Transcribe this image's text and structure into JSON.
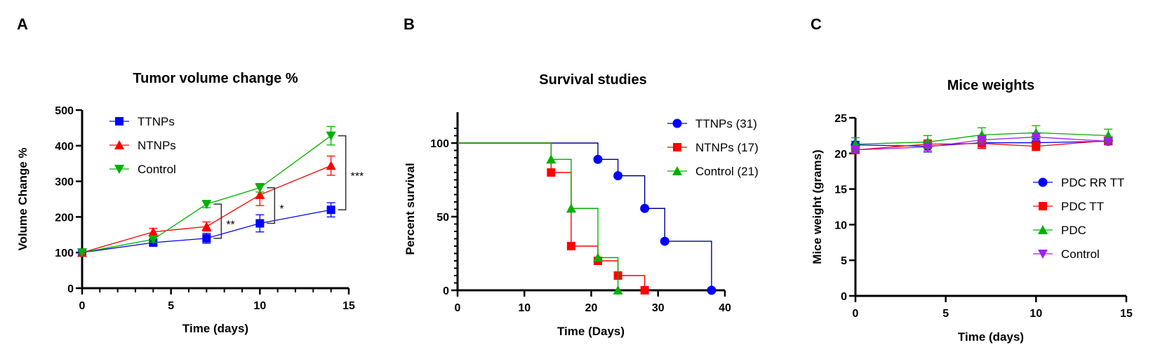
{
  "figure": {
    "panels": [
      "A",
      "B",
      "C"
    ]
  },
  "chart_data": [
    {
      "panel": "A",
      "type": "line",
      "title": "Tumor volume change %",
      "xlabel": "Time (days)",
      "ylabel": "Volume Change %",
      "xlim": [
        0,
        15
      ],
      "ylim": [
        0,
        500
      ],
      "xticks": [
        0,
        5,
        10,
        15
      ],
      "xminor_step": 1,
      "yticks": [
        0,
        100,
        200,
        300,
        400,
        500
      ],
      "grid": false,
      "legend_position": "top-left",
      "x": [
        0,
        4,
        7,
        10,
        14
      ],
      "series": [
        {
          "name": "TTNPs",
          "color": "#0000ff",
          "marker": "square",
          "values": [
            100,
            128,
            140,
            182,
            220
          ],
          "error": [
            3,
            8,
            14,
            24,
            20
          ]
        },
        {
          "name": "NTNPs",
          "color": "#ff0000",
          "marker": "triangle-up",
          "values": [
            100,
            158,
            173,
            262,
            344
          ],
          "error": [
            3,
            10,
            13,
            30,
            27
          ]
        },
        {
          "name": "Control",
          "color": "#00b000",
          "marker": "triangle-down",
          "values": [
            100,
            137,
            236,
            282,
            428
          ],
          "error": [
            3,
            8,
            10,
            12,
            26
          ]
        }
      ],
      "annotations": [
        {
          "label": "**",
          "x": 7,
          "from": 140,
          "to": 236
        },
        {
          "label": "*",
          "x": 10,
          "from": 182,
          "to": 282
        },
        {
          "label": "***",
          "x": 14,
          "from": 220,
          "to": 428
        }
      ]
    },
    {
      "panel": "B",
      "type": "line",
      "subtype": "kaplan-meier",
      "title": "Survival studies",
      "xlabel": "Time (Days)",
      "ylabel": "Percent survival",
      "xlim": [
        0,
        40
      ],
      "ylim": [
        0,
        110
      ],
      "xticks": [
        0,
        10,
        20,
        30,
        40
      ],
      "yticks": [
        0,
        50,
        100
      ],
      "yminor_step": 5,
      "grid": false,
      "legend_position": "top-right",
      "series": [
        {
          "name": "TTNPs (31)",
          "color": "#0000ff",
          "line_color": "#00008b",
          "marker": "circle",
          "steps": [
            [
              0,
              100
            ],
            [
              21,
              88.9
            ],
            [
              24,
              77.8
            ],
            [
              28,
              55.6
            ],
            [
              31,
              33.3
            ],
            [
              38,
              0
            ]
          ]
        },
        {
          "name": "NTNPs (17)",
          "color": "#ff0000",
          "line_color": "#ff0000",
          "marker": "square",
          "steps": [
            [
              0,
              100
            ],
            [
              14,
              80
            ],
            [
              17,
              30
            ],
            [
              21,
              20
            ],
            [
              24,
              10
            ],
            [
              28,
              0
            ]
          ]
        },
        {
          "name": "Control (21)",
          "color": "#00b000",
          "line_color": "#00b000",
          "marker": "triangle-up",
          "steps": [
            [
              0,
              100
            ],
            [
              14,
              88.9
            ],
            [
              17,
              55.6
            ],
            [
              21,
              22.2
            ],
            [
              24,
              0
            ]
          ]
        }
      ]
    },
    {
      "panel": "C",
      "type": "line",
      "title": "Mice weights",
      "xlabel": "Time (days)",
      "ylabel": "Mice weight (grams)",
      "xlim": [
        0,
        15
      ],
      "ylim": [
        0,
        25
      ],
      "xticks": [
        0,
        5,
        10,
        15
      ],
      "yticks": [
        0,
        5,
        10,
        15,
        20,
        25
      ],
      "grid": false,
      "legend_position": "right",
      "x": [
        0,
        4,
        7,
        10,
        14
      ],
      "series": [
        {
          "name": "PDC RR TT",
          "color": "#0000ff",
          "marker": "circle",
          "values": [
            21.2,
            21.0,
            21.5,
            21.5,
            21.7
          ],
          "error": [
            0.5,
            0.8,
            0.8,
            0.6,
            0.5
          ]
        },
        {
          "name": "PDC TT",
          "color": "#ff0000",
          "marker": "square",
          "values": [
            20.5,
            21.3,
            21.4,
            21.0,
            21.8
          ],
          "error": [
            0.4,
            0.6,
            0.7,
            0.6,
            0.5
          ]
        },
        {
          "name": "PDC",
          "color": "#00b000",
          "marker": "triangle-up",
          "values": [
            21.3,
            21.6,
            22.6,
            22.9,
            22.5
          ],
          "error": [
            0.9,
            0.9,
            1.0,
            1.0,
            0.9
          ]
        },
        {
          "name": "Control",
          "color": "#a020f0",
          "marker": "triangle-down",
          "values": [
            20.5,
            20.9,
            21.9,
            22.3,
            21.7
          ],
          "error": [
            0.4,
            0.5,
            0.6,
            0.5,
            0.5
          ]
        }
      ]
    }
  ]
}
